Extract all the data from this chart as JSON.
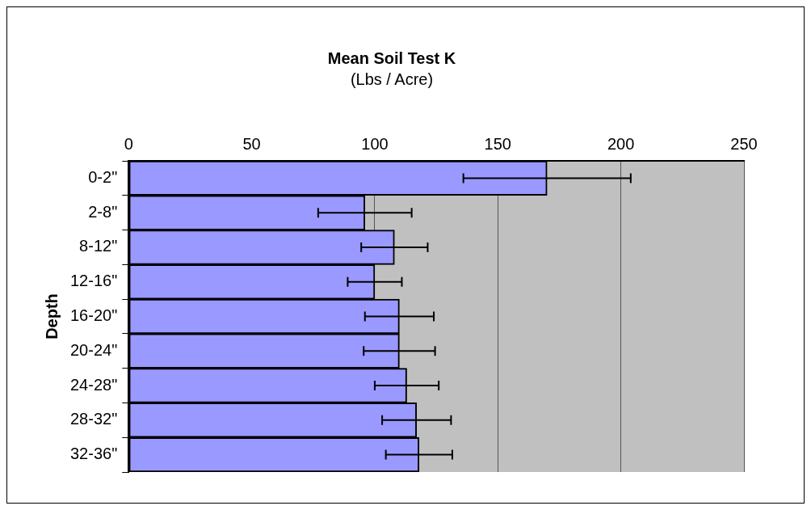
{
  "chart_data": {
    "type": "bar",
    "orientation": "horizontal",
    "title": "Mean Soil Test K",
    "subtitle": "(Lbs / Acre)",
    "ylabel": "Depth",
    "categories": [
      "0-2\"",
      "2-8\"",
      "8-12\"",
      "12-16\"",
      "16-20\"",
      "20-24\"",
      "24-28\"",
      "28-32\"",
      "32-36\""
    ],
    "values": [
      170,
      96,
      108,
      100,
      110,
      110,
      113,
      117,
      118
    ],
    "errors": [
      34,
      19,
      13.5,
      11,
      14,
      14.5,
      13,
      14,
      13.5
    ],
    "color": "#9999ff",
    "xlim": [
      0,
      250
    ],
    "xticks": [
      0,
      50,
      100,
      150,
      200,
      250
    ],
    "grid": "x",
    "legend": false
  }
}
